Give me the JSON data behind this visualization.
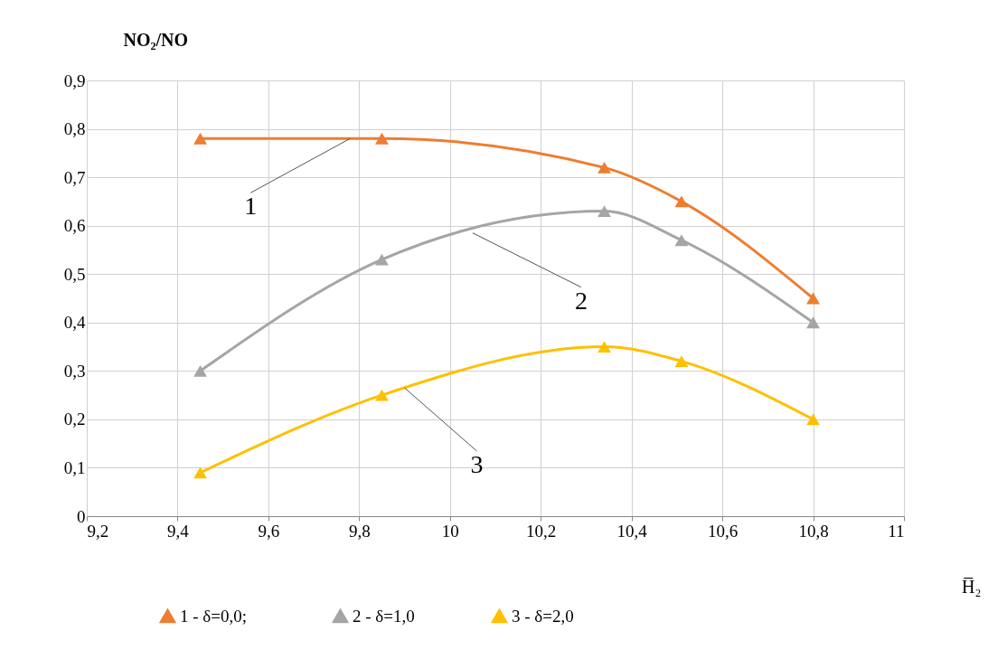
{
  "chart_data": {
    "type": "line",
    "xlabel": "H̅₂",
    "ylabel": "NO₂/NO",
    "x": [
      9.45,
      9.85,
      10.34,
      10.51,
      10.8
    ],
    "series": [
      {
        "name": "1  -  δ=0,0;",
        "color": "#ed7d31",
        "values": [
          0.78,
          0.78,
          0.72,
          0.65,
          0.45
        ]
      },
      {
        "name": "2 - δ=1,0",
        "color": "#a5a5a5",
        "values": [
          0.3,
          0.53,
          0.63,
          0.57,
          0.4
        ]
      },
      {
        "name": "3 - δ=2,0",
        "color": "#ffc000",
        "values": [
          0.09,
          0.25,
          0.35,
          0.32,
          0.2
        ]
      }
    ],
    "xlim": [
      9.2,
      11
    ],
    "xticks": [
      {
        "value": 9.2,
        "label": "9,2"
      },
      {
        "value": 9.4,
        "label": "9,4"
      },
      {
        "value": 9.6,
        "label": "9,6"
      },
      {
        "value": 9.8,
        "label": "9,8"
      },
      10,
      {
        "value": 10.2,
        "label": "10,2"
      },
      {
        "value": 10.4,
        "label": "10,4"
      },
      {
        "value": 10.6,
        "label": "10,6"
      },
      {
        "value": 10.8,
        "label": "10,8"
      },
      11
    ],
    "ylim": [
      0,
      0.9
    ],
    "yticks": [
      0,
      {
        "value": 0.1,
        "label": "0,1"
      },
      {
        "value": 0.2,
        "label": "0,2"
      },
      {
        "value": 0.3,
        "label": "0,3"
      },
      {
        "value": 0.4,
        "label": "0,4"
      },
      {
        "value": 0.5,
        "label": "0,5"
      },
      {
        "value": 0.6,
        "label": "0,6"
      },
      {
        "value": 0.7,
        "label": "0,7"
      },
      {
        "value": 0.8,
        "label": "0,8"
      },
      {
        "value": 0.9,
        "label": "0,9"
      }
    ],
    "annotations": [
      {
        "text": "1",
        "x": 9.78,
        "y": 0.78
      },
      {
        "text": "2",
        "x": 10.05,
        "y": 0.585
      },
      {
        "text": "3",
        "x": 9.9,
        "y": 0.265
      }
    ],
    "grid": true,
    "legend": "bottom",
    "marker": "triangle",
    "line_style": "solid"
  }
}
